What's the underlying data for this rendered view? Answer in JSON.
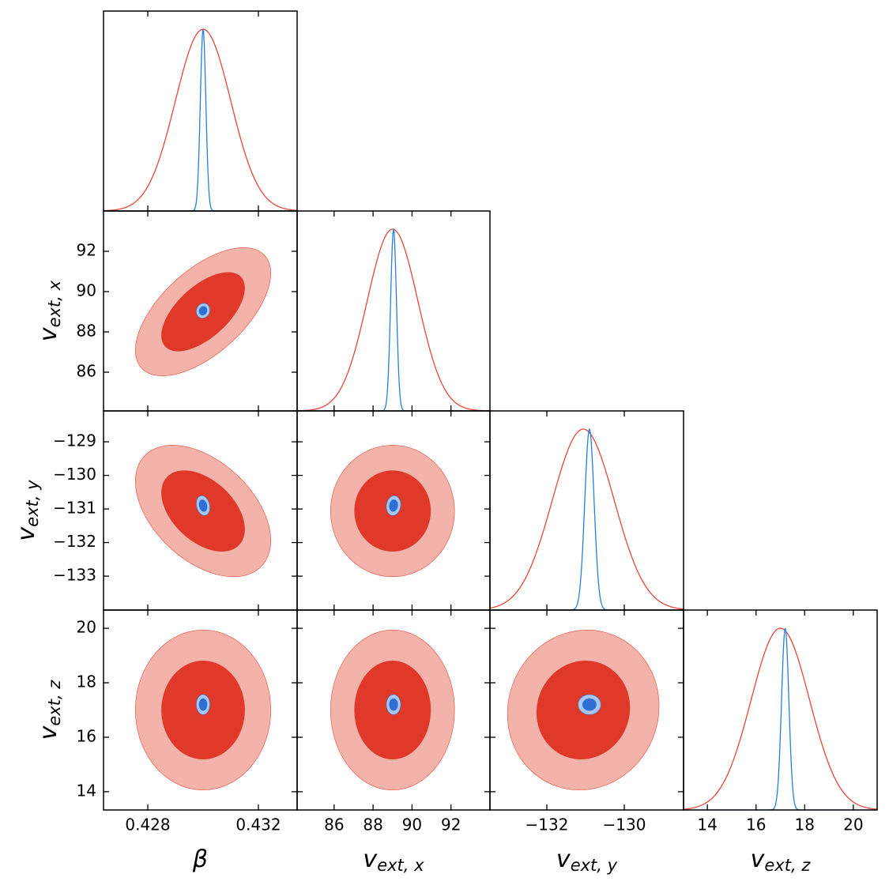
{
  "chart_data": {
    "type": "corner",
    "contour_levels": [
      0.68,
      0.95
    ],
    "red": {
      "line": "#e5473a",
      "fills": [
        "#e0392a",
        "#f3b2aa"
      ]
    },
    "blue": {
      "line": "#2a7fdc",
      "fills": [
        "#2e6fd6",
        "#a9c6ef"
      ]
    },
    "parameters": [
      {
        "symbol": "β",
        "xlim": [
          0.4264,
          0.4334
        ],
        "xticks": [
          0.428,
          0.432
        ],
        "red": {
          "mean": 0.43,
          "sigma": 0.001
        },
        "blue": {
          "mean": 0.43,
          "sigma": 0.0001
        }
      },
      {
        "symbol": "v",
        "subscript": "ext, x",
        "xlim": [
          84.1,
          94.0
        ],
        "xticks": [
          86,
          88,
          90,
          92
        ],
        "ylim": [
          84.08,
          94.0
        ],
        "yticks": [
          86,
          88,
          90,
          92
        ],
        "red": {
          "mean": 89.0,
          "sigma": 1.3
        },
        "blue": {
          "mean": 89.05,
          "sigma": 0.15
        }
      },
      {
        "symbol": "v",
        "subscript": "ext, y",
        "xlim": [
          -133.47,
          -128.47
        ],
        "xticks": [
          {
            "value": -132,
            "label": "−132"
          },
          {
            "value": -130,
            "label": "−130"
          }
        ],
        "ylim": [
          -134.01,
          -128.08
        ],
        "yticks": [
          {
            "value": -133,
            "label": "−133"
          },
          {
            "value": -132,
            "label": "−132"
          },
          {
            "value": -131,
            "label": "−131"
          },
          {
            "value": -130,
            "label": "−130"
          },
          {
            "value": -129,
            "label": "−129"
          }
        ],
        "red": {
          "mean": -131.06,
          "sigma": 0.8
        },
        "blue": {
          "mean": -130.9,
          "sigma": 0.12
        }
      },
      {
        "symbol": "v",
        "subscript": "ext, z",
        "xlim": [
          13.02,
          20.98
        ],
        "xticks": [
          14,
          16,
          18,
          20
        ],
        "ylim": [
          13.33,
          20.67
        ],
        "yticks": [
          14,
          16,
          18,
          20
        ],
        "red": {
          "mean": 17.0,
          "sigma": 1.2
        },
        "blue": {
          "mean": 17.2,
          "sigma": 0.15
        }
      }
    ],
    "correlation": {
      "red": [
        [
          0.6
        ],
        [
          -0.45,
          0.0
        ],
        [
          0.0,
          0.0,
          0.05
        ]
      ],
      "blue": [
        [
          0.1
        ],
        [
          -0.2,
          0.1
        ],
        [
          0.0,
          0.0,
          0.0
        ]
      ]
    }
  }
}
